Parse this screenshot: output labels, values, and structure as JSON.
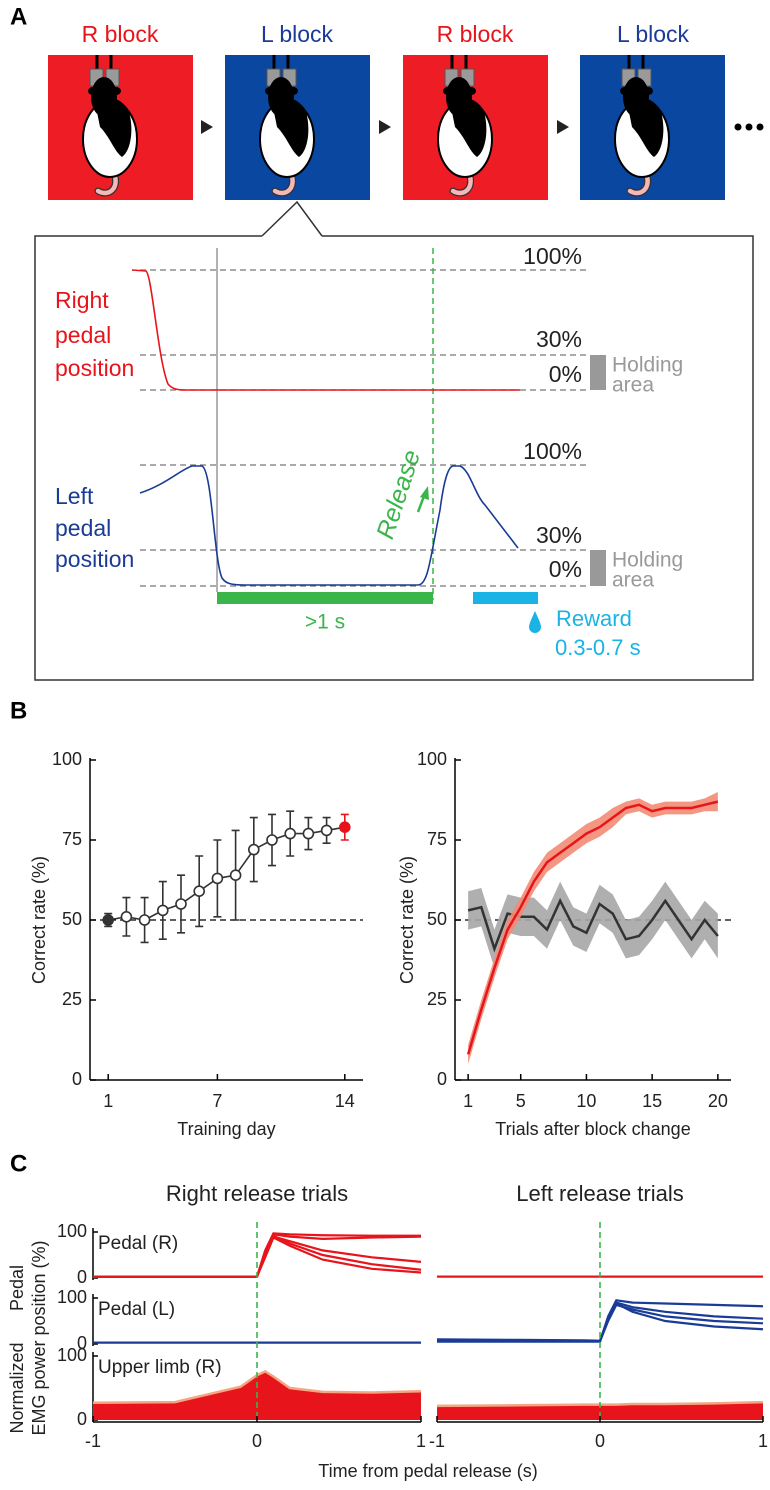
{
  "panel_labels": [
    "A",
    "B",
    "C"
  ],
  "panel_a": {
    "blocks": [
      "R block",
      "L block",
      "R block",
      "L block"
    ],
    "right_label": [
      "Right",
      "pedal",
      "position"
    ],
    "left_label": [
      "Left",
      "pedal",
      "position"
    ],
    "upper_levels": [
      "100%",
      "30%",
      "0%"
    ],
    "lower_levels": [
      "100%",
      "30%",
      "0%"
    ],
    "upper_holding": [
      "Holding",
      "area"
    ],
    "lower_holding": [
      "Holding",
      "area"
    ],
    "release": "Release",
    "duration": ">1 s",
    "reward": [
      "Reward",
      "0.3-0.7 s"
    ]
  },
  "chart_data": [
    {
      "type": "line",
      "xlabel": "Training day",
      "ylabel": "Correct rate (%)",
      "x": [
        1,
        2,
        3,
        4,
        5,
        6,
        7,
        8,
        9,
        10,
        11,
        12,
        13,
        14
      ],
      "xlim": [
        0,
        15
      ],
      "xticks": [
        1,
        7,
        14
      ],
      "ylim": [
        0,
        100
      ],
      "yticks": [
        0,
        25,
        50,
        75,
        100
      ],
      "hline": 50,
      "series": [
        {
          "color": "#333333",
          "values": [
            50,
            51,
            50,
            53,
            55,
            59,
            63,
            64,
            72,
            75,
            77,
            77,
            78,
            79
          ],
          "errors": [
            2,
            6,
            7,
            9,
            9,
            11,
            12,
            14,
            10,
            8,
            7,
            5,
            4,
            4
          ],
          "point_fills": [
            "#333333",
            "#ffffff",
            "#ffffff",
            "#ffffff",
            "#ffffff",
            "#ffffff",
            "#ffffff",
            "#ffffff",
            "#ffffff",
            "#ffffff",
            "#ffffff",
            "#ffffff",
            "#ffffff",
            "#e8141b"
          ]
        }
      ]
    },
    {
      "type": "line",
      "xlabel": "Trials after block change",
      "ylabel": "Correct rate (%)",
      "x": [
        1,
        2,
        3,
        4,
        5,
        6,
        7,
        8,
        9,
        10,
        11,
        12,
        13,
        14,
        15,
        16,
        17,
        18,
        19,
        20
      ],
      "xlim": [
        0,
        21
      ],
      "xticks": [
        1,
        5,
        10,
        15,
        20
      ],
      "ylim": [
        0,
        100
      ],
      "yticks": [
        0,
        25,
        50,
        75,
        100
      ],
      "hline": 50,
      "series": [
        {
          "color": "#333333",
          "band_color": "#a6a6a6",
          "values": [
            53,
            54,
            41,
            52,
            51,
            51,
            47,
            56,
            48,
            46,
            55,
            52,
            44,
            45,
            50,
            56,
            50,
            44,
            50,
            45
          ],
          "errors": [
            6,
            6,
            6,
            6,
            6,
            6,
            6,
            6,
            6,
            6,
            6,
            6,
            6,
            6,
            6,
            6,
            6,
            6,
            6,
            7
          ]
        },
        {
          "color": "#e8141b",
          "band_color": "#f28b74",
          "values": [
            8,
            22,
            35,
            47,
            54,
            62,
            68,
            71,
            74,
            77,
            79,
            82,
            85,
            86,
            84,
            85,
            85,
            85,
            86,
            87
          ],
          "errors": [
            3,
            3,
            3,
            3,
            3,
            3,
            3,
            3,
            3,
            3,
            3,
            3,
            2,
            2,
            2,
            2,
            2,
            2,
            2,
            3
          ]
        }
      ]
    },
    {
      "type": "traces",
      "titles": [
        "Right release trials",
        "Left release trials"
      ],
      "title_colors": [
        "#e8141b",
        "#1a3c96"
      ],
      "ylabels": [
        [
          "Pedal",
          "position (%)"
        ],
        [
          "Normalized",
          "EMG power"
        ]
      ],
      "xlabel": "Time from pedal release (s)",
      "xlim": [
        -1,
        1
      ],
      "xticks": [
        -1,
        0,
        1
      ],
      "marker_x": 0,
      "marker_color": "#3bb54a",
      "x": [
        -1,
        -0.5,
        -0.1,
        0,
        0.05,
        0.1,
        0.2,
        0.4,
        0.7,
        1
      ],
      "rows": [
        {
          "label": "Pedal (R)",
          "color": "#e8141b",
          "fill": false,
          "ylim": [
            0,
            100
          ],
          "yticks": [
            0,
            100
          ],
          "columns": [
            [
              [
                3,
                3,
                3,
                3,
                60,
                97,
                95,
                93,
                92,
                92
              ],
              [
                3,
                3,
                3,
                3,
                55,
                95,
                90,
                85,
                88,
                90
              ],
              [
                3,
                3,
                3,
                3,
                50,
                90,
                80,
                60,
                45,
                35
              ],
              [
                3,
                3,
                3,
                3,
                50,
                92,
                75,
                50,
                30,
                18
              ],
              [
                3,
                3,
                3,
                3,
                45,
                88,
                70,
                40,
                20,
                12
              ]
            ],
            [
              [
                3,
                3,
                3,
                3,
                3,
                3,
                3,
                3,
                3,
                3
              ]
            ]
          ]
        },
        {
          "label": "Pedal (L)",
          "color": "#1a3c96",
          "fill": false,
          "ylim": [
            0,
            100
          ],
          "yticks": [
            0,
            100
          ],
          "columns": [
            [
              [
                3,
                3,
                3,
                3,
                3,
                3,
                3,
                3,
                3,
                3
              ]
            ],
            [
              [
                8,
                7,
                6,
                6,
                60,
                95,
                90,
                88,
                85,
                82
              ],
              [
                5,
                5,
                5,
                5,
                55,
                90,
                80,
                70,
                60,
                55
              ],
              [
                6,
                6,
                6,
                6,
                50,
                85,
                75,
                60,
                50,
                45
              ],
              [
                10,
                9,
                8,
                7,
                55,
                88,
                70,
                50,
                38,
                32
              ]
            ]
          ]
        },
        {
          "label": "Upper limb (R)",
          "color": "#e8141b",
          "edge_color": "#f4a582",
          "fill": true,
          "ylim": [
            0,
            100
          ],
          "yticks": [
            0,
            100
          ],
          "columns": [
            [
              [
                27,
                28,
                52,
                70,
                76,
                68,
                50,
                44,
                43,
                45
              ]
            ],
            [
              [
                22,
                23,
                24,
                24,
                24,
                24,
                25,
                25,
                26,
                28
              ]
            ]
          ]
        }
      ]
    }
  ]
}
